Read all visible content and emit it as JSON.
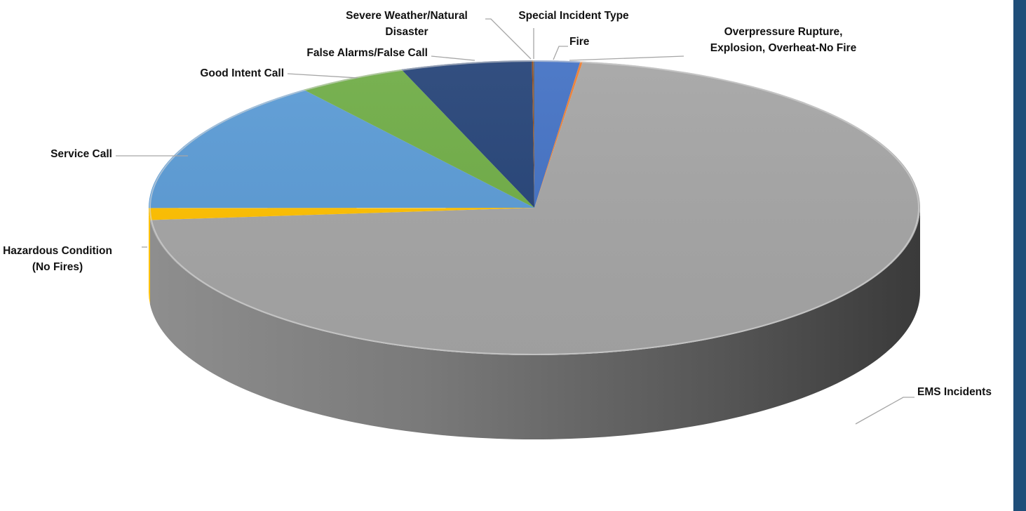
{
  "chart_data": {
    "type": "pie",
    "style": "3d",
    "title": "",
    "categories": [
      "Fire",
      "Overpressure Rupture, Explosion, Overheat-No Fire",
      "EMS Incidents",
      "Hazardous Condition (No Fires)",
      "Service Call",
      "Good Intent Call",
      "False Alarms/False Call",
      "Severe Weather/Natural Disaster",
      "Special Incident Type"
    ],
    "values": [
      1.9,
      0.1,
      71.6,
      1.3,
      14.8,
      4.6,
      5.5,
      0.05,
      0.05
    ],
    "unit": "percent (estimated)",
    "colors": [
      "#4472c4",
      "#ed7d31",
      "#a5a5a5",
      "#ffc000",
      "#5b9bd5",
      "#70ad47",
      "#264478",
      "#9e480e",
      "#636363"
    ],
    "labels": [
      [
        "Fire"
      ],
      [
        "Overpressure Rupture,",
        "Explosion, Overheat-No Fire"
      ],
      [
        "EMS Incidents"
      ],
      [
        "Hazardous Condition",
        "(No Fires)"
      ],
      [
        "Service Call"
      ],
      [
        "Good Intent Call"
      ],
      [
        "False Alarms/False Call"
      ],
      [
        "Severe Weather/Natural",
        "Disaster"
      ],
      [
        "Special Incident Type"
      ]
    ],
    "legend": "none",
    "start_angle_deg": 0,
    "direction": "clockwise"
  },
  "decor": {
    "band_color": "#1f4e79"
  }
}
